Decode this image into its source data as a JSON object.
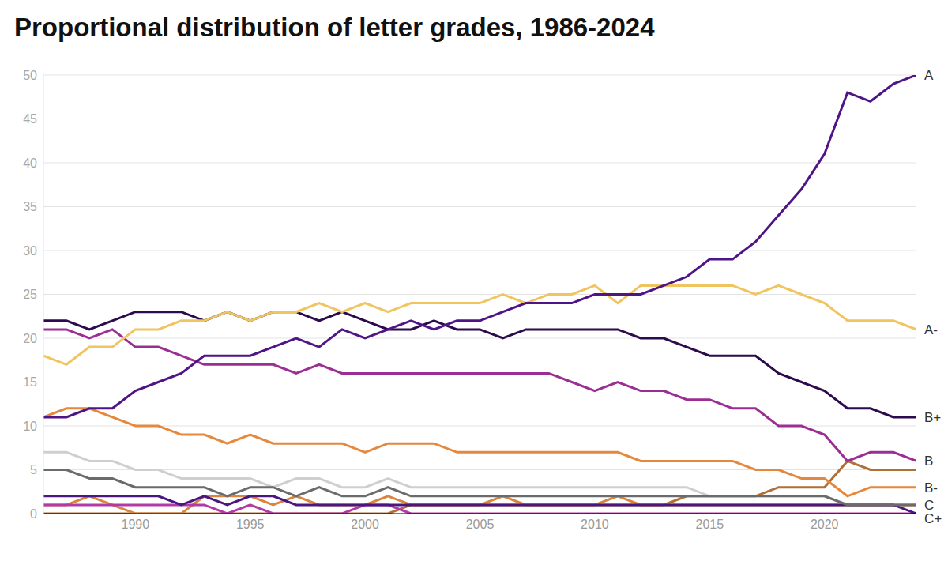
{
  "chart_data": {
    "type": "line",
    "title": "Proportional distribution of letter grades, 1986-2024",
    "x": [
      1986,
      1987,
      1988,
      1989,
      1990,
      1991,
      1992,
      1993,
      1994,
      1995,
      1996,
      1997,
      1998,
      1999,
      2000,
      2001,
      2002,
      2003,
      2004,
      2005,
      2006,
      2007,
      2008,
      2009,
      2010,
      2011,
      2012,
      2013,
      2014,
      2015,
      2016,
      2017,
      2018,
      2019,
      2020,
      2021,
      2022,
      2023,
      2024
    ],
    "xlim": [
      1986,
      2024
    ],
    "xticks": [
      1990,
      1995,
      2000,
      2005,
      2010,
      2015,
      2020
    ],
    "ylim": [
      0,
      50
    ],
    "yticks": [
      0,
      5,
      10,
      15,
      20,
      25,
      30,
      35,
      40,
      45,
      50
    ],
    "grid": true,
    "series": [
      {
        "color": "#cfcfcf",
        "values": [
          7,
          7,
          6,
          6,
          5,
          5,
          4,
          4,
          4,
          4,
          3,
          4,
          4,
          3,
          3,
          4,
          3,
          3,
          3,
          3,
          3,
          3,
          3,
          3,
          3,
          3,
          3,
          3,
          3,
          2,
          2,
          2,
          2,
          2,
          2,
          1,
          1,
          1,
          1
        ]
      },
      {
        "color": "#b06f36",
        "values": [
          0,
          0,
          0,
          0,
          0,
          0,
          0,
          0,
          0,
          0,
          0,
          0,
          0,
          0,
          0,
          0,
          1,
          1,
          1,
          1,
          1,
          1,
          1,
          1,
          1,
          1,
          1,
          1,
          2,
          2,
          2,
          2,
          3,
          3,
          3,
          6,
          5,
          5,
          5
        ]
      },
      {
        "color": "#d9843f",
        "values": [
          1,
          1,
          2,
          1,
          0,
          0,
          0,
          2,
          2,
          2,
          1,
          2,
          1,
          1,
          1,
          2,
          1,
          1,
          1,
          1,
          2,
          1,
          1,
          1,
          1,
          2,
          1,
          1,
          1,
          1,
          1,
          1,
          1,
          1,
          1,
          1,
          1,
          1,
          1
        ]
      },
      {
        "color": "#b23aa6",
        "values": [
          1,
          1,
          1,
          1,
          1,
          1,
          1,
          1,
          0,
          1,
          0,
          0,
          0,
          0,
          1,
          1,
          0,
          0,
          0,
          0,
          0,
          0,
          0,
          0,
          0,
          0,
          0,
          0,
          0,
          0,
          0,
          0,
          0,
          0,
          0,
          0,
          0,
          0,
          0
        ]
      },
      {
        "name": "C+",
        "color": "#4a1680",
        "values": [
          2,
          2,
          2,
          2,
          2,
          2,
          1,
          2,
          1,
          2,
          2,
          1,
          1,
          1,
          1,
          1,
          1,
          1,
          1,
          1,
          1,
          1,
          1,
          1,
          1,
          1,
          1,
          1,
          1,
          1,
          1,
          1,
          1,
          1,
          1,
          1,
          1,
          1,
          0
        ]
      },
      {
        "name": "C",
        "color": "#6b6b6b",
        "values": [
          5,
          5,
          4,
          4,
          3,
          3,
          3,
          3,
          2,
          3,
          3,
          2,
          3,
          2,
          2,
          3,
          2,
          2,
          2,
          2,
          2,
          2,
          2,
          2,
          2,
          2,
          2,
          2,
          2,
          2,
          2,
          2,
          2,
          2,
          2,
          1,
          1,
          1,
          1
        ]
      },
      {
        "name": "B-",
        "color": "#e5883c",
        "values": [
          11,
          12,
          12,
          11,
          10,
          10,
          9,
          9,
          8,
          9,
          8,
          8,
          8,
          8,
          7,
          8,
          8,
          8,
          7,
          7,
          7,
          7,
          7,
          7,
          7,
          7,
          6,
          6,
          6,
          6,
          6,
          5,
          5,
          4,
          4,
          2,
          3,
          3,
          3
        ]
      },
      {
        "name": "B",
        "color": "#9b2e93",
        "values": [
          21,
          21,
          20,
          21,
          19,
          19,
          18,
          17,
          17,
          17,
          17,
          16,
          17,
          16,
          16,
          16,
          16,
          16,
          16,
          16,
          16,
          16,
          16,
          15,
          14,
          15,
          14,
          14,
          13,
          13,
          12,
          12,
          10,
          10,
          9,
          6,
          7,
          7,
          6
        ]
      },
      {
        "name": "B+",
        "color": "#2b0b4b",
        "values": [
          22,
          22,
          21,
          22,
          23,
          23,
          23,
          22,
          23,
          22,
          23,
          23,
          22,
          23,
          22,
          21,
          21,
          22,
          21,
          21,
          20,
          21,
          21,
          21,
          21,
          21,
          20,
          20,
          19,
          18,
          18,
          18,
          16,
          15,
          14,
          12,
          12,
          11,
          11
        ]
      },
      {
        "name": "A-",
        "color": "#f0c45f",
        "values": [
          18,
          17,
          19,
          19,
          21,
          21,
          22,
          22,
          23,
          22,
          23,
          23,
          24,
          23,
          24,
          23,
          24,
          24,
          24,
          24,
          25,
          24,
          25,
          25,
          26,
          24,
          26,
          26,
          26,
          26,
          26,
          25,
          26,
          25,
          24,
          22,
          22,
          22,
          21
        ]
      },
      {
        "name": "A",
        "color": "#4f1486",
        "values": [
          11,
          11,
          12,
          12,
          14,
          15,
          16,
          18,
          18,
          18,
          19,
          20,
          19,
          21,
          20,
          21,
          22,
          21,
          22,
          22,
          23,
          24,
          24,
          24,
          25,
          25,
          25,
          26,
          27,
          29,
          29,
          31,
          34,
          37,
          41,
          48,
          47,
          49,
          50
        ]
      }
    ]
  }
}
